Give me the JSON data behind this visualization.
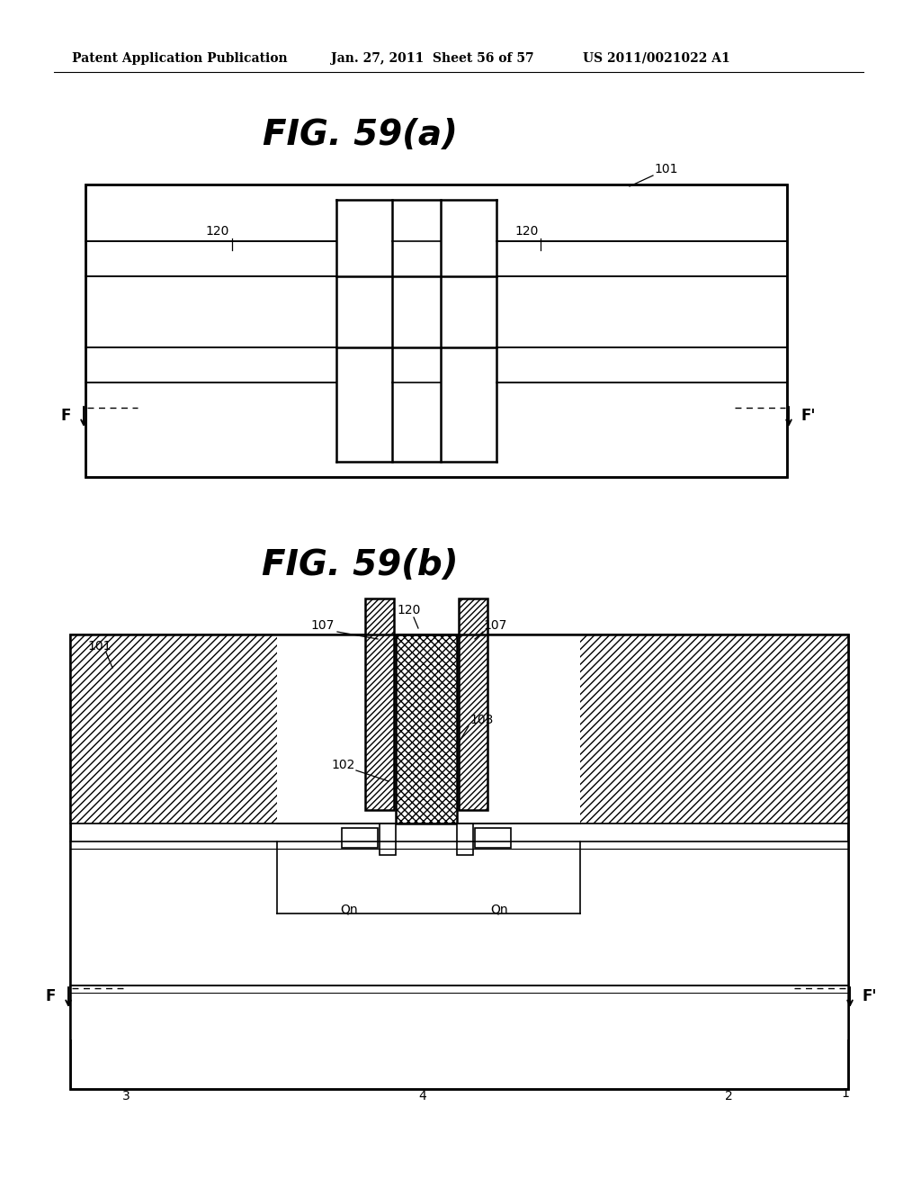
{
  "bg_color": "#ffffff",
  "header_left": "Patent Application Publication",
  "header_mid": "Jan. 27, 2011  Sheet 56 of 57",
  "header_right": "US 2011/0021022 A1",
  "fig_a_title": "FIG. 59(a)",
  "fig_b_title": "FIG. 59(b)"
}
